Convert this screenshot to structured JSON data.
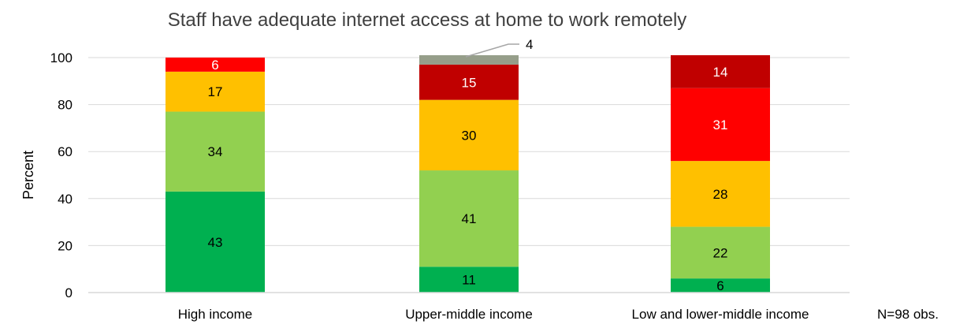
{
  "chart_data": {
    "type": "bar",
    "stacked": true,
    "title": "Staff have adequate internet access at home to work remotely",
    "xlabel": "",
    "ylabel": "Percent",
    "ylim": [
      0,
      100
    ],
    "yticks": [
      0,
      20,
      40,
      60,
      80,
      100
    ],
    "grid": true,
    "legend": "none",
    "categories": [
      "High income",
      "Upper-middle income",
      "Low and lower-middle income"
    ],
    "series": [
      {
        "color": "#00b050",
        "values": [
          43,
          11,
          6
        ]
      },
      {
        "color": "#92d050",
        "values": [
          34,
          41,
          22
        ]
      },
      {
        "color": "#ffc000",
        "values": [
          17,
          30,
          28
        ]
      },
      {
        "color": "#ff0000",
        "values": [
          6,
          0,
          31
        ]
      },
      {
        "color": "#c00000",
        "values": [
          0,
          15,
          14
        ]
      },
      {
        "color": "#969e8a",
        "values": [
          0,
          4,
          0
        ]
      }
    ],
    "value_label_colors": [
      "#000000",
      "#000000",
      "#000000",
      "#ffffff",
      "#ffffff",
      "#000000"
    ],
    "note": "N=98 obs."
  }
}
